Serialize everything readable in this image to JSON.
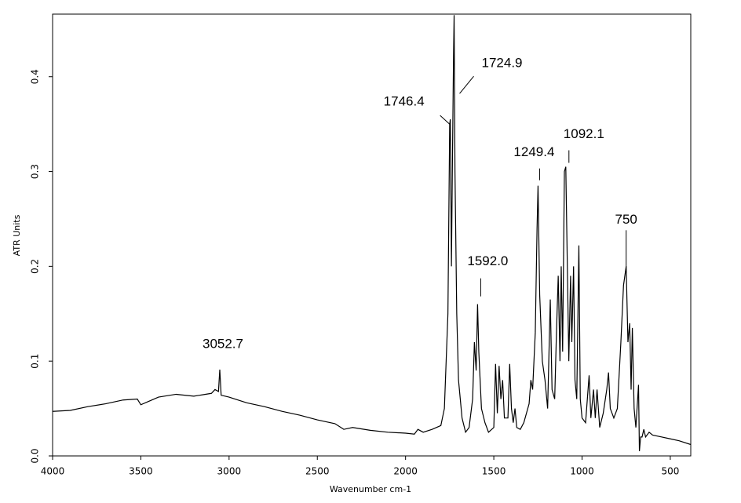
{
  "chart_data": {
    "type": "line",
    "x_label": "Wavenumber cm-1",
    "y_label": "ATR Units",
    "color": "#000000",
    "xlim": [
      4000,
      384
    ],
    "ylim": [
      0,
      0.466
    ],
    "x_reversed": true,
    "xticks": [
      4000,
      3500,
      3000,
      2500,
      2000,
      1500,
      1000,
      500
    ],
    "yticks": [
      {
        "value": 0,
        "label": "0.0"
      },
      0.1,
      0.2,
      0.3,
      0.4
    ],
    "x": [
      4000,
      3900,
      3800,
      3700,
      3600,
      3520,
      3500,
      3450,
      3400,
      3300,
      3200,
      3100,
      3080,
      3060,
      3052.7,
      3045,
      3000,
      2900,
      2800,
      2700,
      2600,
      2500,
      2400,
      2350,
      2300,
      2200,
      2100,
      2000,
      1950,
      1930,
      1900,
      1850,
      1800,
      1780,
      1760,
      1750,
      1746.4,
      1740,
      1735,
      1728,
      1724.9,
      1720,
      1710,
      1700,
      1680,
      1660,
      1640,
      1620,
      1610,
      1600,
      1592.0,
      1585,
      1570,
      1550,
      1530,
      1500,
      1490,
      1480,
      1470,
      1460,
      1450,
      1440,
      1420,
      1410,
      1400,
      1390,
      1380,
      1370,
      1350,
      1330,
      1300,
      1290,
      1280,
      1265,
      1255,
      1249.4,
      1240,
      1225,
      1210,
      1195,
      1180,
      1170,
      1155,
      1145,
      1135,
      1125,
      1118,
      1110,
      1100,
      1092.1,
      1085,
      1075,
      1065,
      1058,
      1048,
      1040,
      1030,
      1018,
      1010,
      1000,
      980,
      960,
      950,
      935,
      925,
      915,
      900,
      880,
      860,
      850,
      840,
      820,
      800,
      780,
      765,
      750,
      740,
      730,
      722,
      715,
      705,
      695,
      680,
      675,
      668,
      660,
      650,
      640,
      620,
      600,
      550,
      500,
      450,
      384
    ],
    "values": [
      0.047,
      0.048,
      0.052,
      0.055,
      0.059,
      0.06,
      0.054,
      0.058,
      0.062,
      0.065,
      0.063,
      0.066,
      0.07,
      0.068,
      0.091,
      0.064,
      0.062,
      0.056,
      0.052,
      0.047,
      0.043,
      0.038,
      0.034,
      0.028,
      0.03,
      0.027,
      0.025,
      0.024,
      0.023,
      0.028,
      0.025,
      0.028,
      0.032,
      0.05,
      0.15,
      0.35,
      0.355,
      0.2,
      0.3,
      0.425,
      0.465,
      0.3,
      0.15,
      0.08,
      0.04,
      0.025,
      0.03,
      0.06,
      0.12,
      0.09,
      0.16,
      0.11,
      0.05,
      0.035,
      0.025,
      0.03,
      0.097,
      0.045,
      0.095,
      0.06,
      0.08,
      0.04,
      0.04,
      0.097,
      0.05,
      0.035,
      0.05,
      0.03,
      0.028,
      0.035,
      0.055,
      0.08,
      0.07,
      0.13,
      0.24,
      0.285,
      0.17,
      0.1,
      0.08,
      0.05,
      0.165,
      0.07,
      0.06,
      0.13,
      0.19,
      0.1,
      0.2,
      0.11,
      0.3,
      0.305,
      0.22,
      0.1,
      0.19,
      0.12,
      0.2,
      0.08,
      0.06,
      0.222,
      0.06,
      0.04,
      0.035,
      0.085,
      0.04,
      0.07,
      0.04,
      0.07,
      0.03,
      0.045,
      0.07,
      0.088,
      0.05,
      0.04,
      0.05,
      0.12,
      0.18,
      0.2,
      0.12,
      0.14,
      0.07,
      0.135,
      0.05,
      0.03,
      0.075,
      0.005,
      0.02,
      0.02,
      0.028,
      0.02,
      0.025,
      0.022,
      0.02,
      0.018,
      0.016,
      0.012
    ],
    "annotations": [
      {
        "text": "3052.7",
        "x": 3052.7,
        "y": 0.091
      },
      {
        "text": "1746.4",
        "x": 1746.4,
        "y": 0.355
      },
      {
        "text": "1724.9",
        "x": 1724.9,
        "y": 0.465
      },
      {
        "text": "1592.0",
        "x": 1592.0,
        "y": 0.16
      },
      {
        "text": "1249.4",
        "x": 1249.4,
        "y": 0.285
      },
      {
        "text": "1092.1",
        "x": 1092.1,
        "y": 0.305
      },
      {
        "text": "750",
        "x": 750,
        "y": 0.2
      }
    ]
  }
}
